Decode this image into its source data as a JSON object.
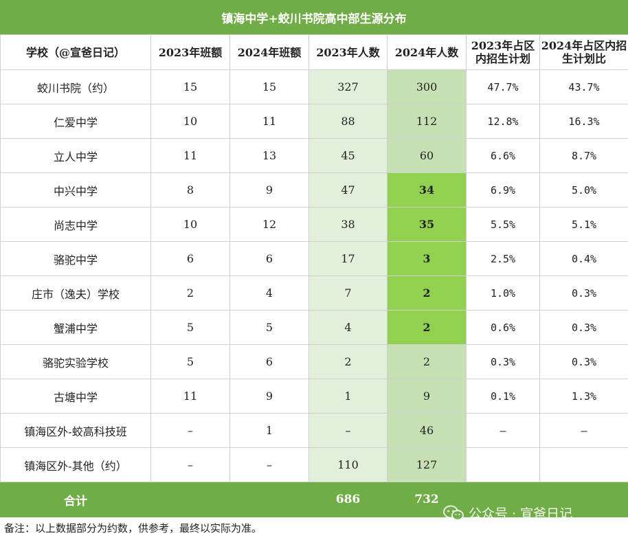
{
  "title": "镇海中学+蛟川书院高中部生源分布",
  "headers": [
    "学校（@宣爸日记）",
    "2023年班额",
    "2024年班额",
    "2023年人数",
    "2024年人数",
    "2023年占区内招生计划",
    "2024年占区内招生计划比"
  ],
  "rows": [
    {
      "school": "蛟川书院（约）",
      "classes_2023": "15",
      "classes_2024": "15",
      "students_2023": "327",
      "students_2024": "300",
      "share_2023": "47.7%",
      "share_2024": "43.7%",
      "highlight": false
    },
    {
      "school": "仁爱中学",
      "classes_2023": "10",
      "classes_2024": "11",
      "students_2023": "88",
      "students_2024": "112",
      "share_2023": "12.8%",
      "share_2024": "16.3%",
      "highlight": false
    },
    {
      "school": "立人中学",
      "classes_2023": "11",
      "classes_2024": "13",
      "students_2023": "45",
      "students_2024": "60",
      "share_2023": "6.6%",
      "share_2024": "8.7%",
      "highlight": false
    },
    {
      "school": "中兴中学",
      "classes_2023": "8",
      "classes_2024": "9",
      "students_2023": "47",
      "students_2024": "34",
      "share_2023": "6.9%",
      "share_2024": "5.0%",
      "highlight": true
    },
    {
      "school": "尚志中学",
      "classes_2023": "10",
      "classes_2024": "12",
      "students_2023": "38",
      "students_2024": "35",
      "share_2023": "5.5%",
      "share_2024": "5.1%",
      "highlight": true
    },
    {
      "school": "骆驼中学",
      "classes_2023": "6",
      "classes_2024": "6",
      "students_2023": "17",
      "students_2024": "3",
      "share_2023": "2.5%",
      "share_2024": "0.4%",
      "highlight": true
    },
    {
      "school": "庄市（逸夫）学校",
      "classes_2023": "2",
      "classes_2024": "4",
      "students_2023": "7",
      "students_2024": "2",
      "share_2023": "1.0%",
      "share_2024": "0.3%",
      "highlight": true
    },
    {
      "school": "蟹浦中学",
      "classes_2023": "5",
      "classes_2024": "5",
      "students_2023": "4",
      "students_2024": "2",
      "share_2023": "0.6%",
      "share_2024": "0.3%",
      "highlight": true
    },
    {
      "school": "骆驼实验学校",
      "classes_2023": "5",
      "classes_2024": "6",
      "students_2023": "2",
      "students_2024": "2",
      "share_2023": "0.3%",
      "share_2024": "0.3%",
      "highlight": false
    },
    {
      "school": "古塘中学",
      "classes_2023": "11",
      "classes_2024": "9",
      "students_2023": "1",
      "students_2024": "9",
      "share_2023": "0.1%",
      "share_2024": "1.3%",
      "highlight": false
    },
    {
      "school": "镇海区外-蛟高科技班",
      "classes_2023": "–",
      "classes_2024": "1",
      "students_2023": "–",
      "students_2024": "46",
      "share_2023": "–",
      "share_2024": "–",
      "highlight": false
    },
    {
      "school": "镇海区外-其他（约）",
      "classes_2023": "–",
      "classes_2024": "–",
      "students_2023": "110",
      "students_2024": "127",
      "share_2023": "",
      "share_2024": "",
      "highlight": false
    }
  ],
  "total": {
    "label": "合计",
    "students_2023": "686",
    "students_2024": "732"
  },
  "note": "备注：以上数据部分为约数，供参考，最终以实际为准。",
  "watermark": {
    "text": "公众号 · 宣爸日记",
    "icon": "wechat-icon"
  },
  "colors": {
    "header_green": "#71ad47",
    "light_green": "#e2efda",
    "mid_green": "#c6e0b4",
    "bright_green": "#92d050"
  }
}
